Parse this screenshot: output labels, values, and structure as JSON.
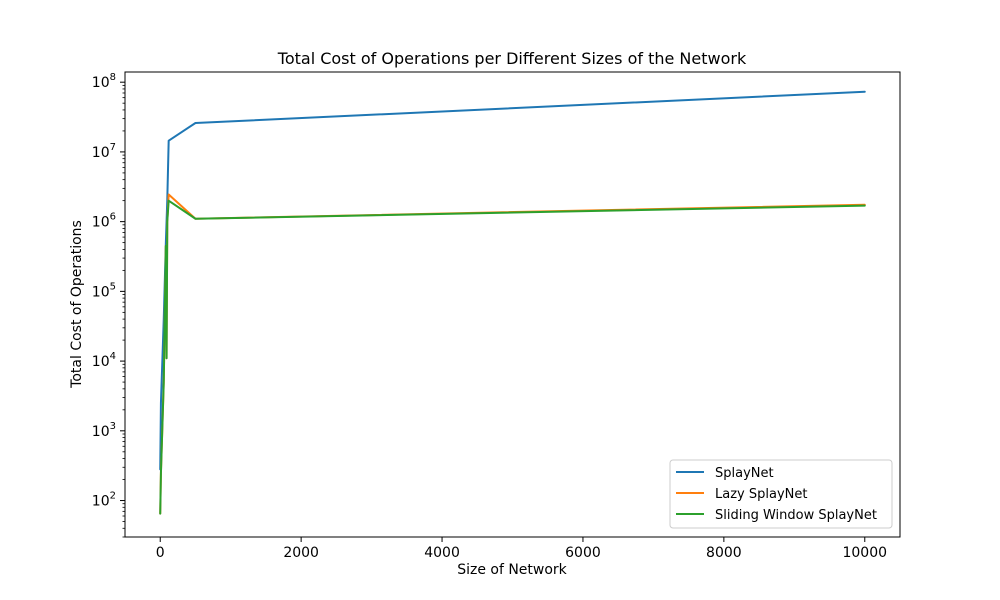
{
  "chart_data": {
    "type": "line",
    "title": "Total Cost of Operations per Different Sizes of the Network",
    "xlabel": "Size of Network",
    "ylabel": "Total Cost of Operations",
    "xscale": "linear",
    "yscale": "log",
    "xlim": [
      -500,
      10500
    ],
    "ylim": [
      30,
      140000000
    ],
    "xticks": [
      0,
      2000,
      4000,
      6000,
      8000,
      10000
    ],
    "xtick_labels": [
      "0",
      "2000",
      "4000",
      "6000",
      "8000",
      "10000"
    ],
    "yticks": [
      100,
      1000,
      10000,
      100000,
      1000000,
      10000000,
      100000000
    ],
    "ytick_labels": [
      {
        "base": "10",
        "exp": "2"
      },
      {
        "base": "10",
        "exp": "3"
      },
      {
        "base": "10",
        "exp": "4"
      },
      {
        "base": "10",
        "exp": "5"
      },
      {
        "base": "10",
        "exp": "6"
      },
      {
        "base": "10",
        "exp": "7"
      },
      {
        "base": "10",
        "exp": "8"
      }
    ],
    "legend_position": "bottom-right",
    "series": [
      {
        "name": "SplayNet",
        "color": "#1f77b4",
        "x": [
          0,
          10,
          50,
          80,
          100,
          120,
          500,
          10000
        ],
        "y": [
          280,
          2500,
          40000,
          500000,
          2000000,
          14500000,
          26000000,
          73000000
        ]
      },
      {
        "name": "Lazy SplayNet",
        "color": "#ff7f0e",
        "x": [
          0,
          10,
          50,
          80,
          90,
          100,
          120,
          500,
          10000
        ],
        "y": [
          65,
          250,
          5000,
          450000,
          11000,
          1000000,
          2450000,
          1100000,
          1750000
        ]
      },
      {
        "name": "Sliding Window SplayNet",
        "color": "#2ca02c",
        "x": [
          0,
          10,
          50,
          80,
          90,
          100,
          120,
          500,
          10000
        ],
        "y": [
          65,
          250,
          5000,
          450000,
          11000,
          1000000,
          2000000,
          1100000,
          1700000
        ]
      }
    ]
  }
}
